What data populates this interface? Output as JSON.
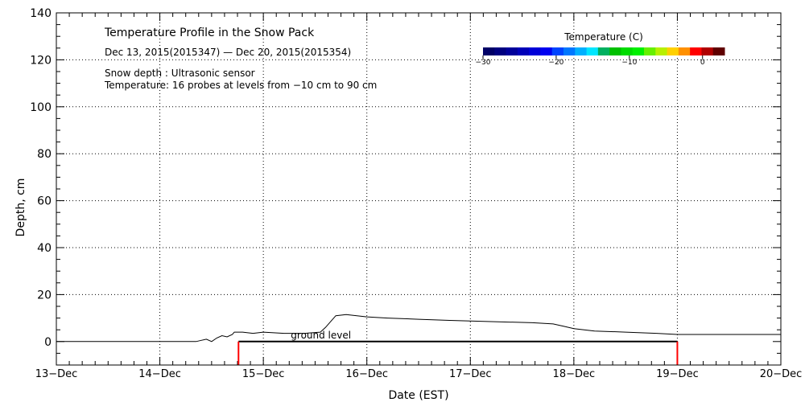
{
  "chart_data": {
    "type": "line",
    "title": "Temperature Profile in the Snow Pack",
    "date_range": "Dec 13, 2015(2015347) — Dec 20, 2015(2015354)",
    "note_depth": "Snow depth : Ultrasonic sensor",
    "note_temperature": "Temperature: 16 probes at levels from −10 cm to 90 cm",
    "xlabel": "Date (EST)",
    "ylabel": "Depth, cm",
    "xlim": [
      0,
      7
    ],
    "ylim": [
      -10,
      140
    ],
    "x_tick_labels": [
      "13−Dec",
      "14−Dec",
      "15−Dec",
      "16−Dec",
      "17−Dec",
      "18−Dec",
      "19−Dec",
      "20−Dec"
    ],
    "y_ticks": [
      0,
      20,
      40,
      60,
      80,
      100,
      120,
      140
    ],
    "grid": true,
    "ground_label": "ground level",
    "ground_x_start": 1.76,
    "ground_x_end": 6.0,
    "ground_level": 0,
    "colorbar": {
      "title": "Temperature (C)",
      "range": [
        -30,
        3
      ],
      "tick_values": [
        -30,
        -20,
        -10,
        0
      ],
      "tick_labels": [
        "−30",
        "−20",
        "−10",
        "0"
      ],
      "colors": [
        "#000066",
        "#000080",
        "#00009a",
        "#0000b8",
        "#0000d8",
        "#0000f0",
        "#0044ff",
        "#0077ff",
        "#00b0ff",
        "#00e6ff",
        "#00b060",
        "#00c000",
        "#00dc00",
        "#00f000",
        "#66f000",
        "#b8f000",
        "#ffd000",
        "#ff9000",
        "#ff0000",
        "#b00000",
        "#600000"
      ]
    },
    "series": [
      {
        "name": "Snow depth",
        "x": [
          0.0,
          1.0,
          1.35,
          1.4,
          1.45,
          1.5,
          1.55,
          1.6,
          1.65,
          1.7,
          1.72,
          1.76,
          1.8,
          1.9,
          2.0,
          2.2,
          2.4,
          2.55,
          2.6,
          2.7,
          2.8,
          3.0,
          3.2,
          3.5,
          3.8,
          4.2,
          4.6,
          4.8,
          4.9,
          5.0,
          5.2,
          5.5,
          5.8,
          6.0,
          6.3,
          6.6,
          7.0
        ],
        "y": [
          0,
          0,
          0,
          0.5,
          1,
          0,
          1.5,
          2.5,
          2,
          3,
          4,
          4,
          4,
          3.5,
          4,
          3.5,
          3.5,
          4,
          6,
          11,
          11.5,
          10.5,
          10,
          9.5,
          9,
          8.5,
          8,
          7.5,
          6.5,
          5.5,
          4.5,
          4,
          3.5,
          3,
          3,
          3,
          3
        ]
      }
    ]
  }
}
